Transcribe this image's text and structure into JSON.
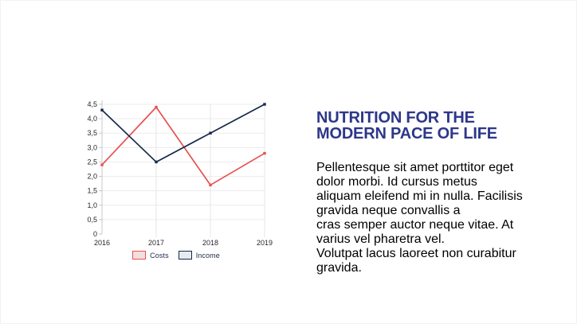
{
  "canvas": {
    "background": "#ffffff",
    "border_color": "#f2f2f2"
  },
  "chart_data": {
    "type": "line",
    "categories": [
      "2016",
      "2017",
      "2018",
      "2019"
    ],
    "series": [
      {
        "name": "Costs",
        "color": "#e85151",
        "legend_fill": "#f3dfdf",
        "values": [
          2.4,
          4.4,
          1.7,
          2.8
        ]
      },
      {
        "name": "Income",
        "color": "#16294b",
        "legend_fill": "#e7eaee",
        "values": [
          4.3,
          2.5,
          3.5,
          4.5
        ]
      }
    ],
    "title": "",
    "xlabel": "",
    "ylabel": "",
    "ylim": [
      0,
      4.5
    ],
    "ytick_step": 0.5,
    "ytick_labels": [
      "0",
      "0,5",
      "1,0",
      "1,5",
      "2,0",
      "2,5",
      "3,0",
      "3,5",
      "4,0",
      "4,5"
    ],
    "grid": true,
    "legend_position": "bottom",
    "tick_label_color": "#26262e",
    "grid_color": "#ececec",
    "vgrid_color": "#e4e4e4",
    "axis_color": "#c8c8c8"
  },
  "content": {
    "title_lines": [
      "NUTRITION FOR THE",
      "MODERN PACE OF LIFE"
    ],
    "title_color": "#2d3789",
    "body_color": "#3c5a74",
    "body_lines": [
      "Pellentesque sit amet porttitor eget dolor morbi. Id cursus metus",
      "aliquam eleifend mi in nulla. Facilisis gravida neque convallis a",
      "cras semper auctor neque vitae. At varius vel pharetra vel.",
      "Volutpat lacus laoreet non curabitur gravida."
    ]
  }
}
